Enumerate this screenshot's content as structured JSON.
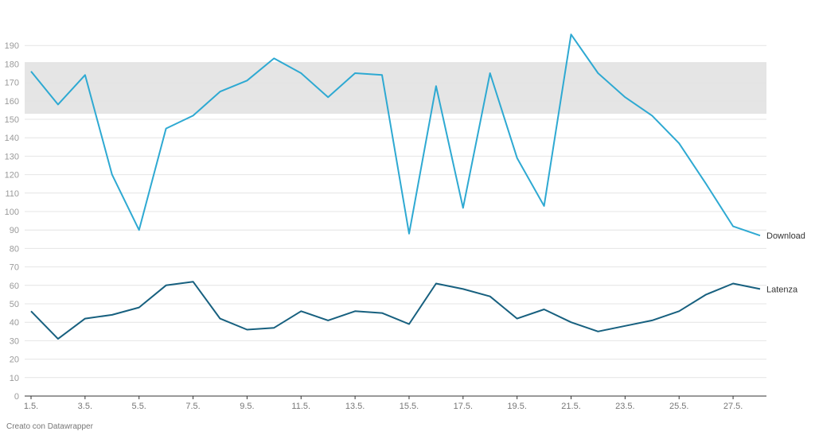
{
  "chart_data": {
    "type": "line",
    "x": [
      "1.5.",
      "2.5.",
      "3.5.",
      "4.5.",
      "5.5.",
      "6.5.",
      "7.5.",
      "8.5.",
      "9.5.",
      "10.5.",
      "11.5.",
      "12.5.",
      "13.5.",
      "14.5.",
      "15.5.",
      "16.5.",
      "17.5.",
      "18.5.",
      "19.5.",
      "20.5.",
      "21.5.",
      "22.5.",
      "23.5.",
      "24.5.",
      "25.5.",
      "26.5.",
      "27.5.",
      "28.5."
    ],
    "x_tick_labels": [
      "1.5.",
      "3.5.",
      "5.5.",
      "7.5.",
      "9.5.",
      "11.5.",
      "13.5.",
      "15.5.",
      "17.5.",
      "19.5.",
      "21.5.",
      "23.5.",
      "25.5.",
      "27.5."
    ],
    "series": [
      {
        "name": "Download",
        "color": "#2ea9d2",
        "values": [
          176,
          158,
          174,
          120,
          90,
          145,
          152,
          165,
          171,
          183,
          175,
          162,
          175,
          174,
          88,
          168,
          102,
          175,
          129,
          103,
          196,
          175,
          162,
          152,
          137,
          115,
          92,
          87
        ]
      },
      {
        "name": "Latenza",
        "color": "#17607f",
        "values": [
          46,
          31,
          42,
          44,
          48,
          60,
          62,
          42,
          36,
          37,
          46,
          41,
          46,
          45,
          39,
          61,
          58,
          54,
          42,
          47,
          40,
          35,
          38,
          41,
          46,
          55,
          61,
          58
        ]
      }
    ],
    "ylim": [
      0,
      200
    ],
    "y_ticks": [
      0,
      10,
      20,
      30,
      40,
      50,
      60,
      70,
      80,
      90,
      100,
      110,
      120,
      130,
      140,
      150,
      160,
      170,
      180,
      190
    ],
    "band": {
      "from": 153,
      "to": 181,
      "color": "#e5e5e5"
    },
    "grid": true,
    "title": "",
    "xlabel": "",
    "ylabel": ""
  },
  "footer": {
    "credit": "Creato con Datawrapper"
  }
}
